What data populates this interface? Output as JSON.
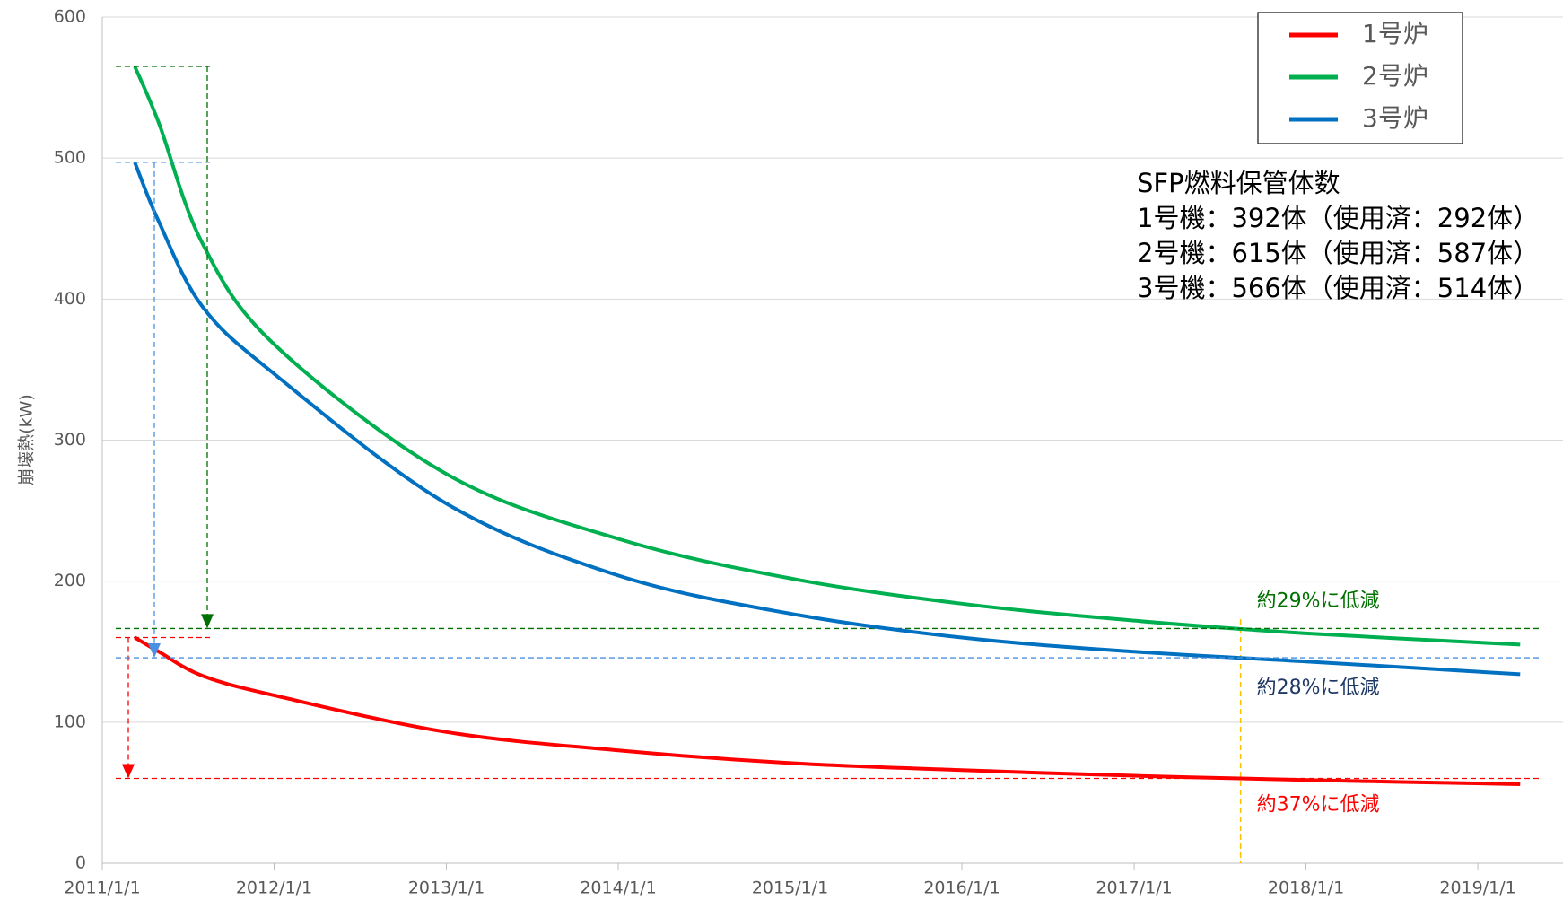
{
  "chart_data": {
    "type": "line",
    "y_label": "崩壊熱(kW)",
    "x": [
      "2011/3/11",
      "2011/5/1",
      "2011/8/1",
      "2012/1/1",
      "2013/1/1",
      "2014/1/1",
      "2015/1/1",
      "2016/1/1",
      "2017/1/1",
      "2018/1/1",
      "2019/4/1"
    ],
    "series": [
      {
        "name": "1号炉",
        "color": "#ff0000",
        "values": [
          160,
          150,
          133,
          119,
          93,
          80,
          71,
          66,
          62,
          59,
          56
        ],
        "annotation": "約37%に低減",
        "annotation_color": "#ff0000"
      },
      {
        "name": "2号炉",
        "color": "#00b050",
        "values": [
          565,
          525,
          440,
          368,
          276,
          230,
          202,
          184,
          172,
          163,
          155
        ],
        "annotation": "約29%に低減",
        "annotation_color": "#007000"
      },
      {
        "name": "3号炉",
        "color": "#0070c0",
        "values": [
          497,
          455,
          395,
          347,
          255,
          204,
          177,
          160,
          150,
          143,
          134
        ],
        "annotation": "約28%に低減",
        "annotation_color": "#1f3864"
      }
    ],
    "reference_date": "2017/8/15",
    "xlim": [
      "2011/1/1",
      "2019/7/1"
    ],
    "xticks": [
      "2011/1/1",
      "2012/1/1",
      "2013/1/1",
      "2014/1/1",
      "2015/1/1",
      "2016/1/1",
      "2017/1/1",
      "2018/1/1",
      "2019/1/1"
    ],
    "ylim": [
      0,
      600
    ],
    "yticks": [
      0,
      100,
      200,
      300,
      400,
      500,
      600
    ],
    "grid": true,
    "legend": "top-right",
    "info_title": "SFP燃料保管体数",
    "info_lines": [
      "1号機：392体（使用済：292体）",
      "2号機：615体（使用済：587体）",
      "3号機：566体（使用済：514体）"
    ]
  }
}
